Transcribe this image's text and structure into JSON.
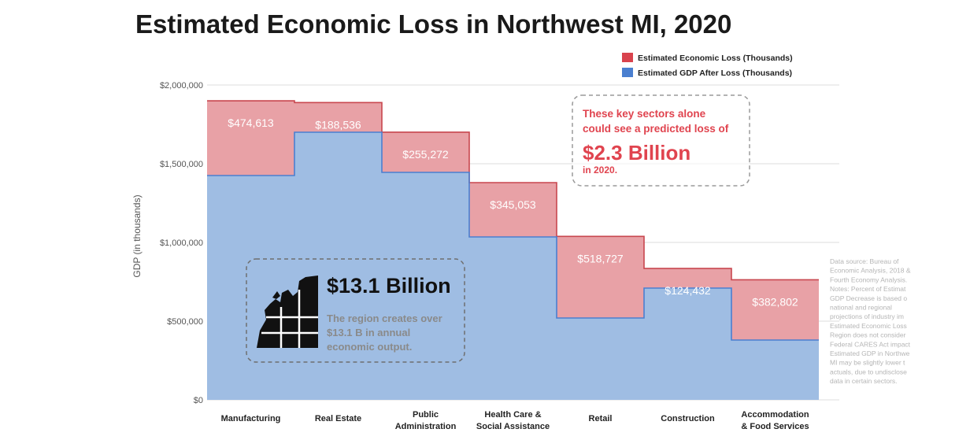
{
  "chart_data": {
    "type": "area",
    "title": "Estimated Economic Loss in Northwest MI, 2020",
    "ylabel": "GDP (in thousands)",
    "xlabel": "",
    "ylim": [
      0,
      2000000
    ],
    "yticks": [
      "$0",
      "$500,000",
      "$1,000,000",
      "$1,500,000",
      "$2,000,000"
    ],
    "ytick_values": [
      0,
      500000,
      1000000,
      1500000,
      2000000
    ],
    "grid": true,
    "legend_position": "top-right",
    "categories": [
      [
        "Manufacturing"
      ],
      [
        "Real Estate"
      ],
      [
        "Public",
        "Administration"
      ],
      [
        "Health Care &",
        "Social Assistance"
      ],
      [
        "Retail"
      ],
      [
        "Construction"
      ],
      [
        "Accommodation",
        "& Food Services"
      ]
    ],
    "series": [
      {
        "name": "Estimated GDP After Loss (Thousands)",
        "color": "#9fbde3",
        "line_color": "#4a7fd0",
        "values": [
          1425000,
          1700000,
          1445000,
          1035000,
          520000,
          710000,
          380000
        ]
      },
      {
        "name": "Estimated Economic Loss (Thousands)",
        "color": "#e8a1a6",
        "line_color": "#c8474f",
        "values": [
          474613,
          188536,
          255272,
          345053,
          518727,
          124432,
          382802
        ],
        "labels": [
          "$474,613",
          "$188,536",
          "$255,272",
          "$345,053",
          "$518,727",
          "$124,432",
          "$382,802"
        ]
      }
    ],
    "legend_swatches": {
      "loss": "#d9434d",
      "gdp": "#4a7fd0"
    }
  },
  "callouts": {
    "loss": {
      "line1": "These key sectors alone",
      "line2": "could see a predicted loss of",
      "amount": "$2.3 Billion",
      "line3": "in 2020."
    },
    "output": {
      "amount": "$13.1 Billion",
      "line1": "The region creates over",
      "line2": "$13.1 B in annual",
      "line3": "economic output."
    }
  },
  "source_note": [
    "Data source: Bureau of",
    "Economic Analysis, 2018 &",
    "Fourth Economy Analysis.",
    "Notes: Percent of Estimat",
    "GDP Decrease is based o",
    "national and regional",
    "projections of industry im",
    "Estimated Economic Loss",
    "Region does not consider",
    "Federal CARES Act impact",
    "Estimated GDP in Northwe",
    "MI may be slightly lower t",
    "actuals, due to undisclose",
    "data in certain sectors."
  ]
}
